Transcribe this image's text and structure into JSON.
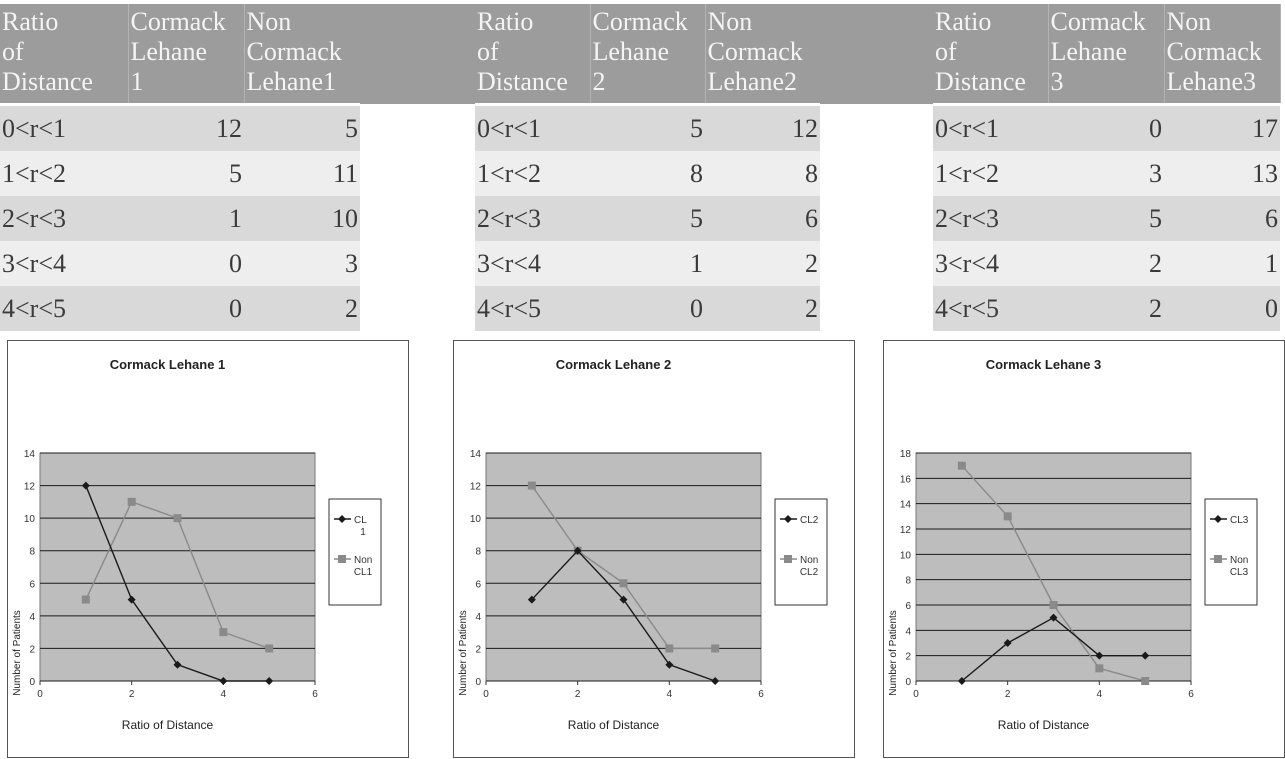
{
  "tables": [
    {
      "headers": [
        "Ratio of Distance",
        "Cormack Lehane 1",
        "Non Cormack Lehane1"
      ],
      "rows": [
        [
          "0<r<1",
          "12",
          "5"
        ],
        [
          "1<r<2",
          "5",
          "11"
        ],
        [
          "2<r<3",
          "1",
          "10"
        ],
        [
          "3<r<4",
          "0",
          "3"
        ],
        [
          "4<r<5",
          "0",
          "2"
        ]
      ]
    },
    {
      "headers": [
        "Ratio of Distance",
        "Cormack Lehane 2",
        "Non Cormack Lehane2"
      ],
      "rows": [
        [
          "0<r<1",
          "5",
          "12"
        ],
        [
          "1<r<2",
          "8",
          "8"
        ],
        [
          "2<r<3",
          "5",
          "6"
        ],
        [
          "3<r<4",
          "1",
          "2"
        ],
        [
          "4<r<5",
          "0",
          "2"
        ]
      ]
    },
    {
      "headers": [
        "Ratio of Distance",
        "Cormack Lehane 3",
        "Non Cormack Lehane3"
      ],
      "rows": [
        [
          "0<r<1",
          "0",
          "17"
        ],
        [
          "1<r<2",
          "3",
          "13"
        ],
        [
          "2<r<3",
          "5",
          "6"
        ],
        [
          "3<r<4",
          "2",
          "1"
        ],
        [
          "4<r<5",
          "2",
          "0"
        ]
      ]
    }
  ],
  "chart_data": [
    {
      "type": "line",
      "title": "Cormack Lehane 1",
      "xlabel": "Ratio of Distance",
      "ylabel": "Number of Patients",
      "xlim": [
        0,
        6
      ],
      "ylim": [
        0,
        14
      ],
      "xticks": [
        0,
        2,
        4,
        6
      ],
      "yticks": [
        0,
        2,
        4,
        6,
        8,
        10,
        12,
        14
      ],
      "grid": true,
      "legend": "right",
      "x": [
        1,
        2,
        3,
        4,
        5
      ],
      "series": [
        {
          "name": "CL 1",
          "values": [
            12,
            5,
            1,
            0,
            0
          ],
          "color": "#1a1a1a",
          "marker": "diamond"
        },
        {
          "name": "Non CL1",
          "values": [
            5,
            11,
            10,
            3,
            2
          ],
          "color": "#8a8a8a",
          "marker": "square"
        }
      ]
    },
    {
      "type": "line",
      "title": "Cormack Lehane 2",
      "xlabel": "Ratio of Distance",
      "ylabel": "Number of Patients",
      "xlim": [
        0,
        6
      ],
      "ylim": [
        0,
        14
      ],
      "xticks": [
        0,
        2,
        4,
        6
      ],
      "yticks": [
        0,
        2,
        4,
        6,
        8,
        10,
        12,
        14
      ],
      "grid": true,
      "legend": "right",
      "x": [
        1,
        2,
        3,
        4,
        5
      ],
      "series": [
        {
          "name": "CL2",
          "values": [
            5,
            8,
            5,
            1,
            0
          ],
          "color": "#1a1a1a",
          "marker": "diamond"
        },
        {
          "name": "Non CL2",
          "values": [
            12,
            8,
            6,
            2,
            2
          ],
          "color": "#8a8a8a",
          "marker": "square"
        }
      ]
    },
    {
      "type": "line",
      "title": "Cormack Lehane 3",
      "xlabel": "Ratio of Distance",
      "ylabel": "Number of Patients",
      "xlim": [
        0,
        6
      ],
      "ylim": [
        0,
        18
      ],
      "xticks": [
        0,
        2,
        4,
        6
      ],
      "yticks": [
        0,
        2,
        4,
        6,
        8,
        10,
        12,
        14,
        16,
        18
      ],
      "grid": true,
      "legend": "right",
      "x": [
        1,
        2,
        3,
        4,
        5
      ],
      "series": [
        {
          "name": "CL3",
          "values": [
            0,
            3,
            5,
            2,
            2
          ],
          "color": "#1a1a1a",
          "marker": "diamond"
        },
        {
          "name": "Non CL3",
          "values": [
            17,
            13,
            6,
            1,
            0
          ],
          "color": "#8a8a8a",
          "marker": "square"
        }
      ]
    }
  ]
}
